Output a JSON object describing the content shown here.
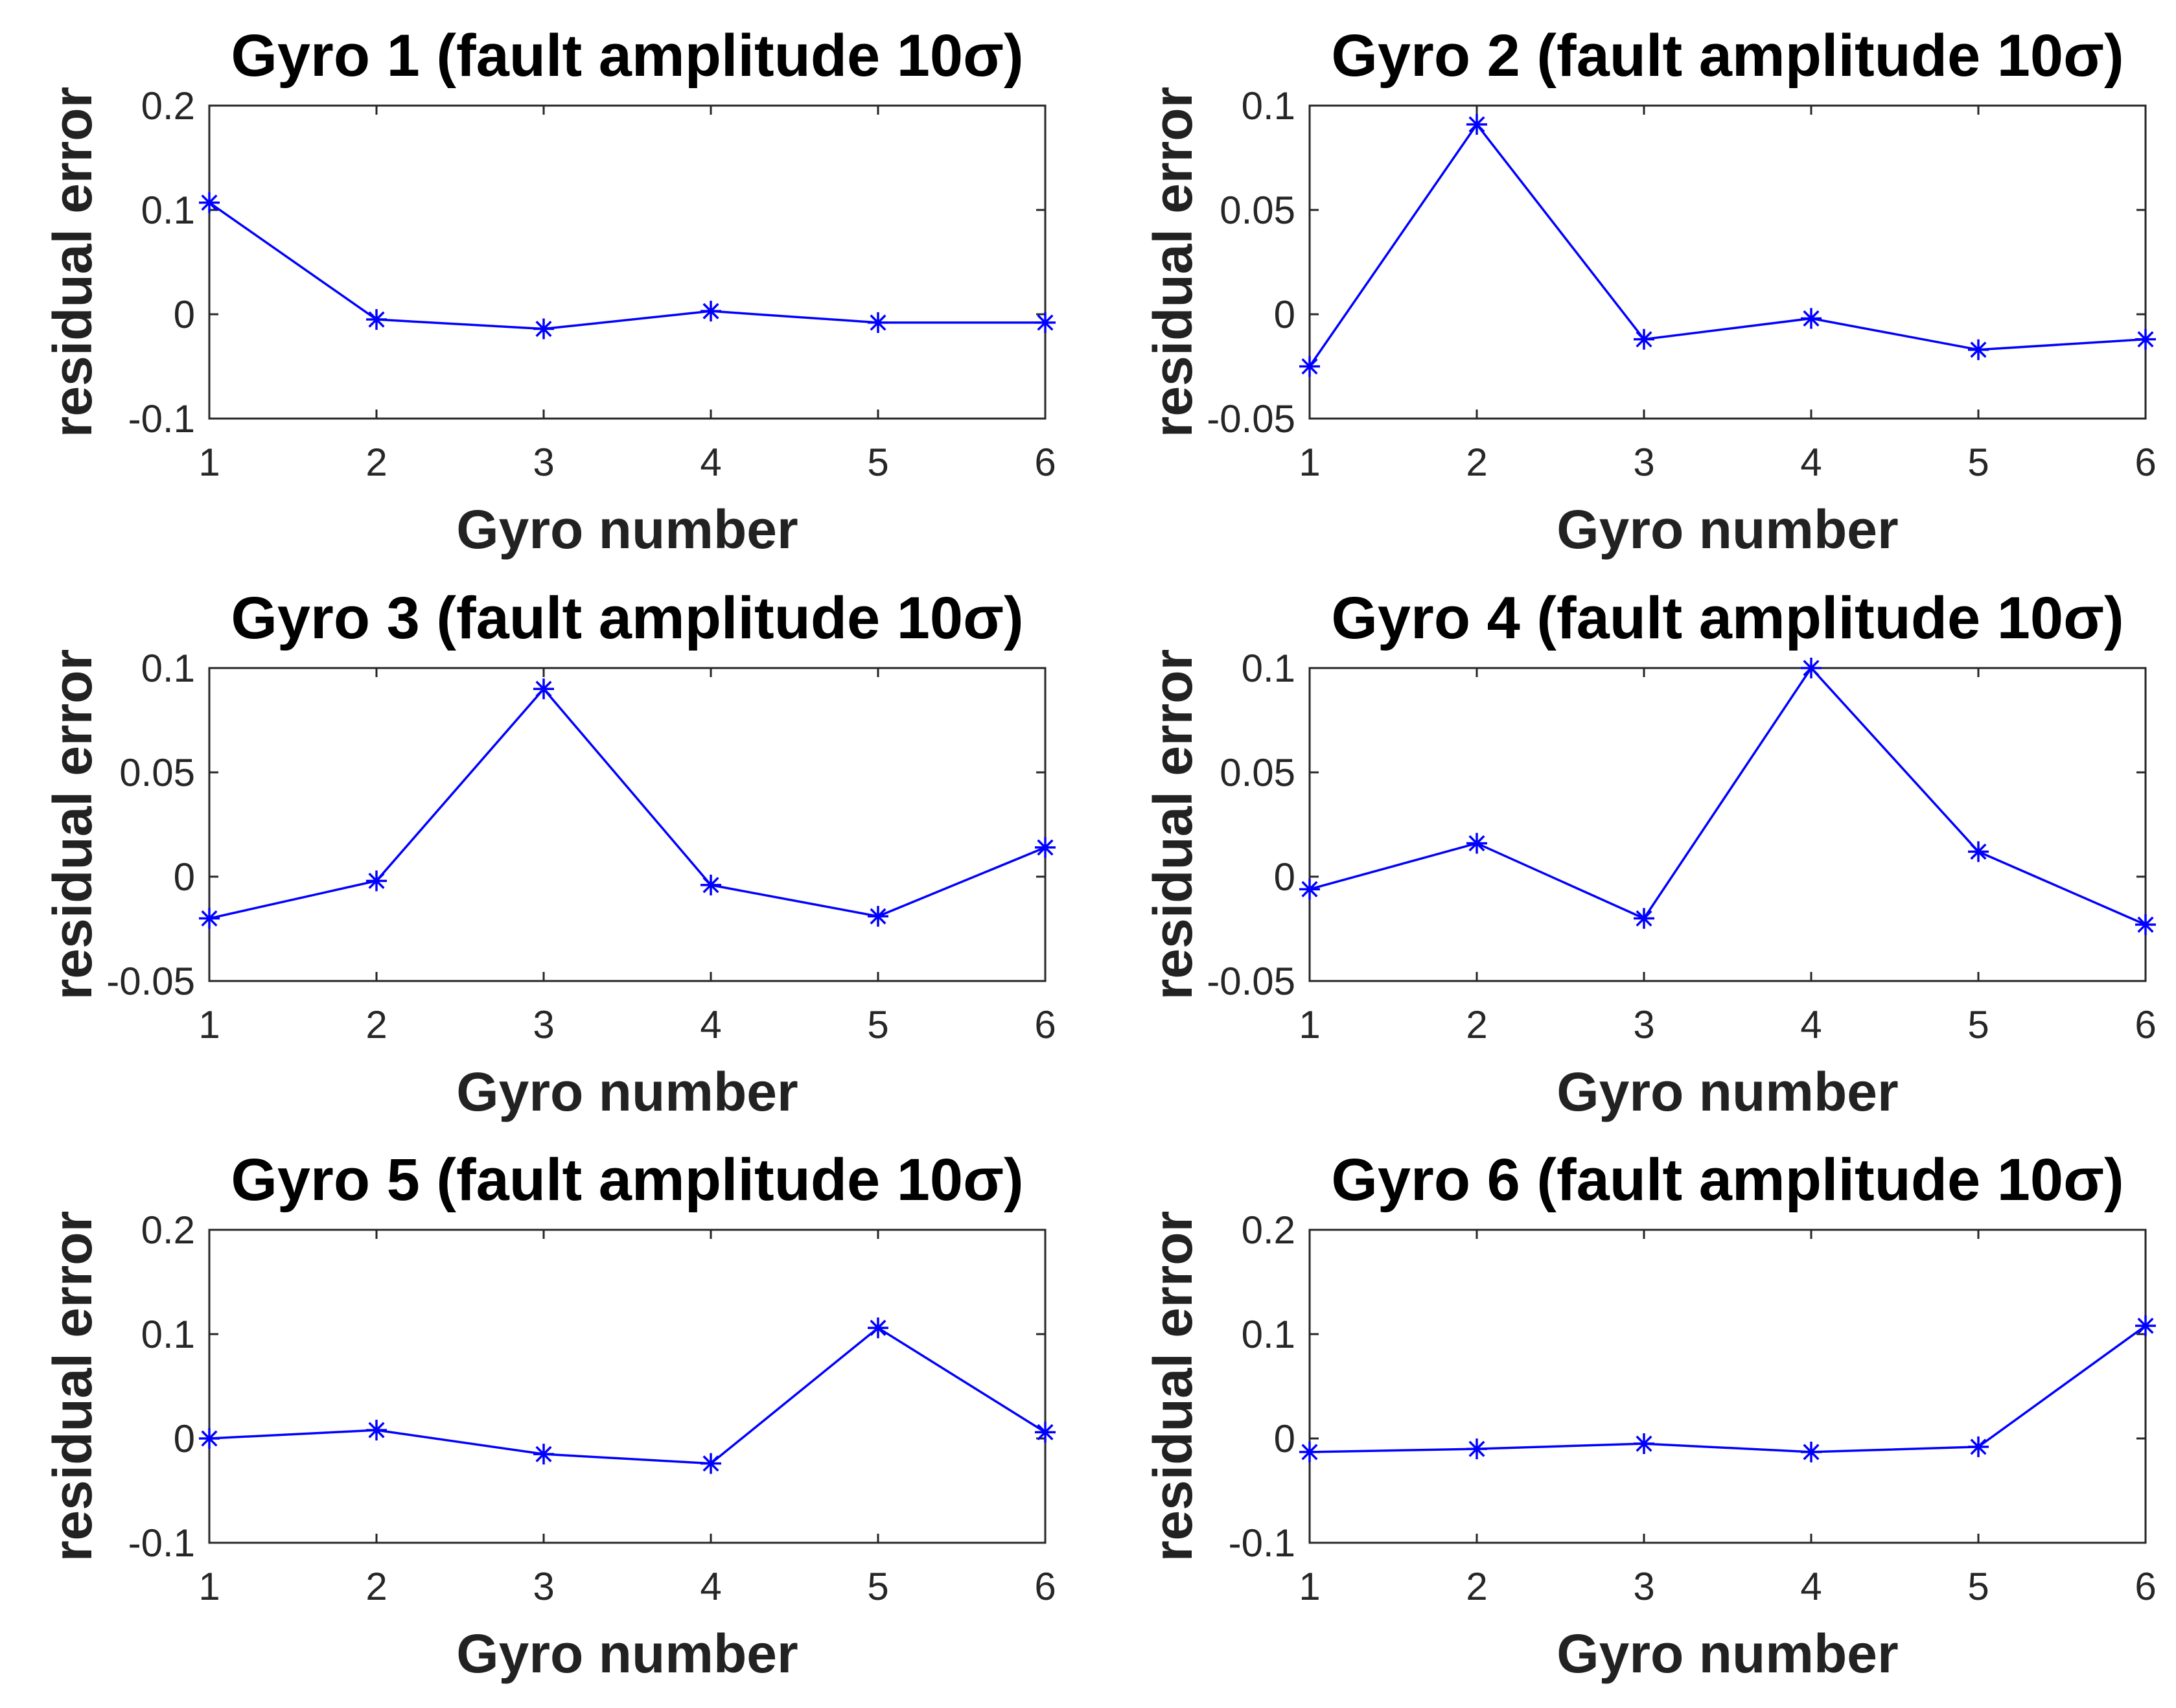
{
  "figure_title": "",
  "chart_data": [
    {
      "type": "line",
      "title": "Gyro 1 (fault amplitude 10σ)",
      "xlabel": "Gyro number",
      "ylabel": "residual error",
      "x": [
        1,
        2,
        3,
        4,
        5,
        6
      ],
      "values": [
        0.107,
        -0.005,
        -0.014,
        0.003,
        -0.008,
        -0.008
      ],
      "xlim": [
        1,
        6
      ],
      "ylim": [
        -0.1,
        0.2
      ],
      "xticks": [
        "1",
        "2",
        "3",
        "4",
        "5",
        "6"
      ],
      "yticks": [
        "0.2",
        "0.1",
        "0",
        "-0.1"
      ],
      "ytick_values": [
        0.2,
        0.1,
        0,
        -0.1
      ],
      "marker": "asterisk",
      "color": "#0000ff",
      "grid": false
    },
    {
      "type": "line",
      "title": "Gyro 2 (fault amplitude 10σ)",
      "xlabel": "Gyro number",
      "ylabel": "residual error",
      "x": [
        1,
        2,
        3,
        4,
        5,
        6
      ],
      "values": [
        -0.025,
        0.091,
        -0.012,
        -0.002,
        -0.017,
        -0.012
      ],
      "xlim": [
        1,
        6
      ],
      "ylim": [
        -0.05,
        0.1
      ],
      "xticks": [
        "1",
        "2",
        "3",
        "4",
        "5",
        "6"
      ],
      "yticks": [
        "0.1",
        "0.05",
        "0",
        "-0.05"
      ],
      "ytick_values": [
        0.1,
        0.05,
        0,
        -0.05
      ],
      "marker": "asterisk",
      "color": "#0000ff",
      "grid": false
    },
    {
      "type": "line",
      "title": "Gyro 3 (fault amplitude 10σ)",
      "xlabel": "Gyro number",
      "ylabel": "residual error",
      "x": [
        1,
        2,
        3,
        4,
        5,
        6
      ],
      "values": [
        -0.02,
        -0.002,
        0.09,
        -0.004,
        -0.019,
        0.014
      ],
      "xlim": [
        1,
        6
      ],
      "ylim": [
        -0.05,
        0.1
      ],
      "xticks": [
        "1",
        "2",
        "3",
        "4",
        "5",
        "6"
      ],
      "yticks": [
        "0.1",
        "0.05",
        "0",
        "-0.05"
      ],
      "ytick_values": [
        0.1,
        0.05,
        0,
        -0.05
      ],
      "marker": "asterisk",
      "color": "#0000ff",
      "grid": false
    },
    {
      "type": "line",
      "title": "Gyro 4 (fault amplitude 10σ)",
      "xlabel": "Gyro number",
      "ylabel": "residual error",
      "x": [
        1,
        2,
        3,
        4,
        5,
        6
      ],
      "values": [
        -0.006,
        0.016,
        -0.02,
        0.1,
        0.012,
        -0.023
      ],
      "xlim": [
        1,
        6
      ],
      "ylim": [
        -0.05,
        0.1
      ],
      "xticks": [
        "1",
        "2",
        "3",
        "4",
        "5",
        "6"
      ],
      "yticks": [
        "0.1",
        "0.05",
        "0",
        "-0.05"
      ],
      "ytick_values": [
        0.1,
        0.05,
        0,
        -0.05
      ],
      "marker": "asterisk",
      "color": "#0000ff",
      "grid": false
    },
    {
      "type": "line",
      "title": "Gyro 5 (fault amplitude 10σ)",
      "xlabel": "Gyro number",
      "ylabel": "residual error",
      "x": [
        1,
        2,
        3,
        4,
        5,
        6
      ],
      "values": [
        0.0,
        0.008,
        -0.015,
        -0.024,
        0.106,
        0.006
      ],
      "xlim": [
        1,
        6
      ],
      "ylim": [
        -0.1,
        0.2
      ],
      "xticks": [
        "1",
        "2",
        "3",
        "4",
        "5",
        "6"
      ],
      "yticks": [
        "0.2",
        "0.1",
        "0",
        "-0.1"
      ],
      "ytick_values": [
        0.2,
        0.1,
        0,
        -0.1
      ],
      "marker": "asterisk",
      "color": "#0000ff",
      "grid": false
    },
    {
      "type": "line",
      "title": "Gyro 6 (fault amplitude 10σ)",
      "xlabel": "Gyro number",
      "ylabel": "residual error",
      "x": [
        1,
        2,
        3,
        4,
        5,
        6
      ],
      "values": [
        -0.013,
        -0.01,
        -0.005,
        -0.013,
        -0.008,
        0.108
      ],
      "xlim": [
        1,
        6
      ],
      "ylim": [
        -0.1,
        0.2
      ],
      "xticks": [
        "1",
        "2",
        "3",
        "4",
        "5",
        "6"
      ],
      "yticks": [
        "0.2",
        "0.1",
        "0",
        "-0.1"
      ],
      "ytick_values": [
        0.2,
        0.1,
        0,
        -0.1
      ],
      "marker": "asterisk",
      "color": "#0000ff",
      "grid": false
    }
  ]
}
